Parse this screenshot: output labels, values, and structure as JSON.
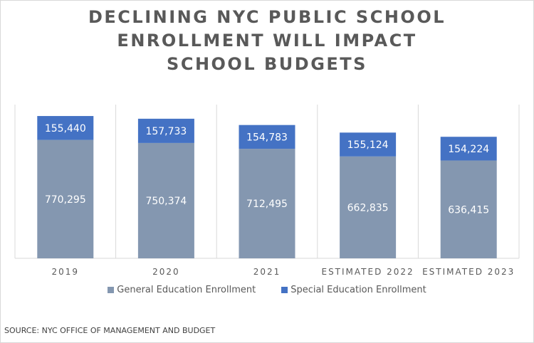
{
  "chart_data": {
    "type": "bar",
    "stacked": true,
    "title": [
      "DECLINING NYC PUBLIC SCHOOL",
      "ENROLLMENT WILL IMPACT",
      "SCHOOL BUDGETS"
    ],
    "categories": [
      "2019",
      "2020",
      "2021",
      "ESTIMATED 2022",
      "ESTIMATED 2023"
    ],
    "series": [
      {
        "name": "General Education Enrollment",
        "values": [
          770295,
          750374,
          712495,
          662835,
          636415
        ],
        "labels": [
          "770,295",
          "750,374",
          "712,495",
          "662,835",
          "636,415"
        ],
        "color": "#8497B0"
      },
      {
        "name": "Special Education Enrollment",
        "values": [
          155440,
          157733,
          154783,
          155124,
          154224
        ],
        "labels": [
          "155,440",
          "157,733",
          "154,783",
          "155,124",
          "154,224"
        ],
        "color": "#4472C4"
      }
    ],
    "ylim": [
      0,
      1000000
    ],
    "grid": "vertical category separators",
    "legend": "bottom",
    "source": "SOURCE: NYC OFFICE OF MANAGEMENT AND BUDGET"
  }
}
